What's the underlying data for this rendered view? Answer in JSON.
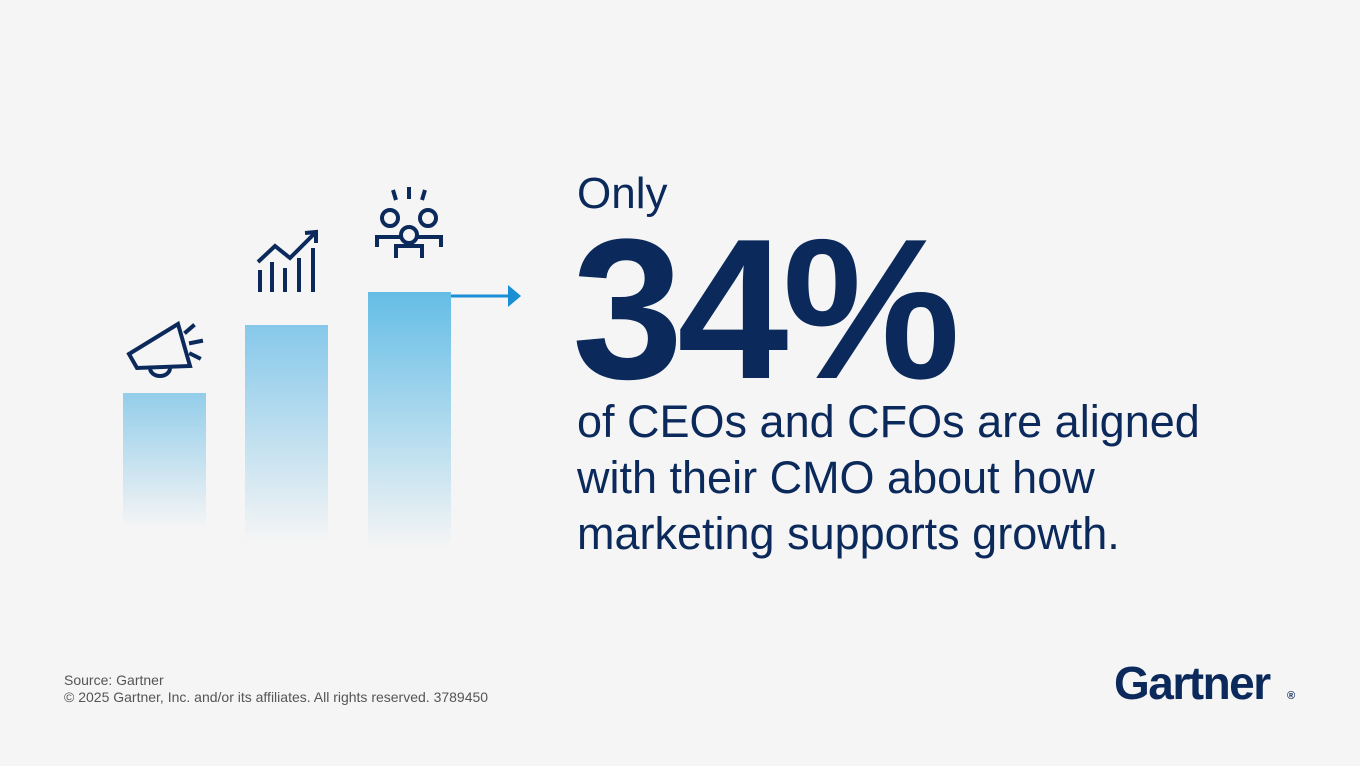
{
  "headline": {
    "lead": "Only",
    "figure": "34%",
    "lines": [
      "of CEOs and CFOs are aligned",
      "with their CMO about how",
      "marketing supports growth."
    ]
  },
  "footer": {
    "source": "Source: Gartner",
    "copyright": "© 2025 Gartner, Inc. and/or its affiliates. All rights reserved. 3789450"
  },
  "logo": {
    "name": "Gartner",
    "mark": "®"
  }
}
